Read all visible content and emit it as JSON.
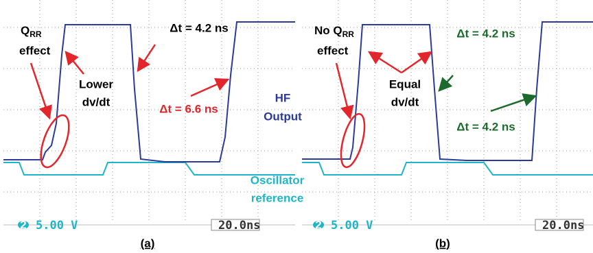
{
  "panels": [
    {
      "label": "(a)",
      "channel": "2",
      "scale": "5.00 V",
      "timebase": "20.0ns",
      "qrr_note": {
        "main": "Q",
        "sub": "RR",
        "line2": "effect"
      },
      "slope_note": [
        "Lower",
        "dv/dt"
      ],
      "dt_top": "Δt = 4.2 ns",
      "dt_bottom": "Δt = 6.6 ns",
      "hf_label": [
        "HF",
        "Output"
      ],
      "osc_label": [
        "Oscillator",
        "reference"
      ]
    },
    {
      "label": "(b)",
      "channel": "2",
      "scale": "5.00 V",
      "timebase": "20.0ns",
      "qrr_note": {
        "main": "No Q",
        "sub": "RR",
        "line2": "effect"
      },
      "slope_note": [
        "Equal",
        "dv/dt"
      ],
      "dt_top": "Δt = 4.2 ns",
      "dt_bottom": "Δt = 4.2 ns"
    }
  ]
}
